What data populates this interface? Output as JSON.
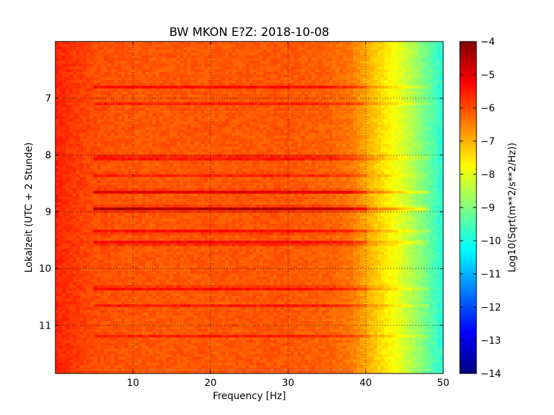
{
  "chart_data": {
    "type": "heatmap",
    "title": "BW MKON E?Z: 2018-10-08",
    "xlabel": "Frequency [Hz]",
    "ylabel": "Lokalzeit (UTC + 2 Stunde)",
    "xlim": [
      0,
      50
    ],
    "ylim": [
      6,
      11.85
    ],
    "y_inverted": true,
    "xticks": [
      10,
      20,
      30,
      40,
      50
    ],
    "yticks": [
      7,
      8,
      9,
      10,
      11
    ],
    "grid": true,
    "colormap": "jet",
    "colorbar": {
      "label": "Log10(Sqrt(m**2/s**2/Hz))",
      "range": [
        -14,
        -4
      ],
      "ticks": [
        -4,
        -5,
        -6,
        -7,
        -8,
        -9,
        -10,
        -11,
        -12,
        -13,
        -14
      ]
    },
    "base_level_by_frequency": {
      "frequency_hz": [
        0,
        5,
        10,
        20,
        30,
        35,
        38,
        40,
        42,
        44,
        46,
        48,
        50
      ],
      "log10_amplitude": [
        -5.6,
        -6.0,
        -6.1,
        -6.1,
        -6.1,
        -6.2,
        -6.4,
        -6.9,
        -7.4,
        -7.9,
        -8.5,
        -9.2,
        -9.9
      ]
    },
    "noise_bands": [
      {
        "time": 6.8,
        "width": 0.05,
        "level": -5.3
      },
      {
        "time": 7.1,
        "width": 0.04,
        "level": -5.5
      },
      {
        "time": 8.05,
        "width": 0.05,
        "level": -5.0
      },
      {
        "time": 8.35,
        "width": 0.04,
        "level": -5.3
      },
      {
        "time": 8.65,
        "width": 0.05,
        "level": -4.8
      },
      {
        "time": 8.95,
        "width": 0.06,
        "level": -4.5
      },
      {
        "time": 9.35,
        "width": 0.05,
        "level": -5.2
      },
      {
        "time": 9.55,
        "width": 0.05,
        "level": -5.0
      },
      {
        "time": 10.35,
        "width": 0.05,
        "level": -5.1
      },
      {
        "time": 10.65,
        "width": 0.04,
        "level": -5.4
      },
      {
        "time": 11.2,
        "width": 0.04,
        "level": -5.4
      }
    ]
  }
}
